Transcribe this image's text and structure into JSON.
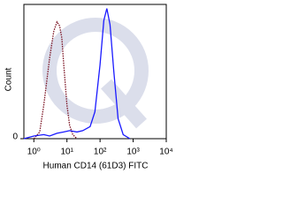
{
  "chart_data": {
    "type": "line",
    "xlabel": "Human CD14 (61D3) FITC",
    "ylabel": "Count",
    "xscale": "log",
    "xlim": [
      0.5,
      10000
    ],
    "xticks": [
      {
        "value": 1,
        "label": "10⁰"
      },
      {
        "value": 10,
        "label": "10¹"
      },
      {
        "value": 100,
        "label": "10²"
      },
      {
        "value": 1000,
        "label": "10³"
      },
      {
        "value": 10000,
        "label": "10⁴"
      }
    ],
    "ylim": [
      0,
      100
    ],
    "yticks": [
      0
    ],
    "series": [
      {
        "color": "#7a1020",
        "dash": true,
        "x": [
          1,
          1.5,
          2,
          3,
          4,
          5,
          6,
          7,
          8,
          10,
          12,
          15,
          20
        ],
        "values": [
          0,
          5,
          25,
          60,
          80,
          87,
          84,
          75,
          55,
          25,
          10,
          3,
          0
        ]
      },
      {
        "color": "#1a1aff",
        "dash": false,
        "x": [
          0.5,
          1,
          2,
          3,
          5,
          8,
          12,
          20,
          30,
          50,
          70,
          100,
          130,
          160,
          200,
          260,
          350,
          500,
          800
        ],
        "values": [
          0,
          2,
          3,
          2,
          4,
          5,
          6,
          5,
          6,
          9,
          20,
          55,
          88,
          97,
          85,
          50,
          15,
          3,
          0
        ]
      }
    ]
  }
}
